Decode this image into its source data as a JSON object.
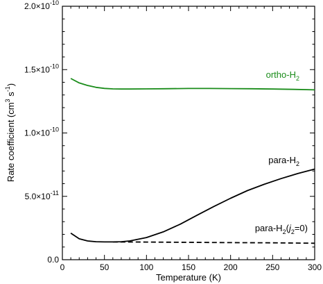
{
  "chart_data": {
    "type": "line",
    "xlabel": "Temperature (K)",
    "ylabel": {
      "base": "Rate coefficient (cm",
      "exp1": "3",
      "mid": " s",
      "exp2": "-1",
      "end": ")"
    },
    "xlim": [
      0,
      300
    ],
    "ylim": [
      0,
      2e-10
    ],
    "x_ticks": [
      {
        "value": 0,
        "label": "0"
      },
      {
        "value": 50,
        "label": "50"
      },
      {
        "value": 100,
        "label": "100"
      },
      {
        "value": 150,
        "label": "150"
      },
      {
        "value": 200,
        "label": "200"
      },
      {
        "value": 250,
        "label": "250"
      },
      {
        "value": 300,
        "label": "300"
      }
    ],
    "y_ticks": [
      {
        "value": 0,
        "mantissa": "0.0",
        "exponent": ""
      },
      {
        "value": 5e-11,
        "mantissa": "5.0×10",
        "exponent": "-11"
      },
      {
        "value": 1e-10,
        "mantissa": "1.0×10",
        "exponent": "-10"
      },
      {
        "value": 1.5e-10,
        "mantissa": "1.5×10",
        "exponent": "-10"
      },
      {
        "value": 2e-10,
        "mantissa": "2.0×10",
        "exponent": "-10"
      }
    ],
    "grid": false,
    "series": [
      {
        "id": "ortho",
        "label_parts": [
          "ortho-H",
          "2",
          "",
          "",
          ""
        ],
        "color": "#1a8c1a",
        "dash": "",
        "x": [
          10,
          20,
          30,
          40,
          50,
          60,
          70,
          80,
          100,
          120,
          150,
          175,
          200,
          225,
          250,
          275,
          300
        ],
        "y": [
          1.43e-10,
          1.395e-10,
          1.375e-10,
          1.36e-10,
          1.352e-10,
          1.348e-10,
          1.347e-10,
          1.347e-10,
          1.348e-10,
          1.349e-10,
          1.351e-10,
          1.351e-10,
          1.35e-10,
          1.349e-10,
          1.347e-10,
          1.344e-10,
          1.34e-10
        ]
      },
      {
        "id": "para",
        "label_parts": [
          "para-H",
          "2",
          "",
          "",
          ""
        ],
        "color": "#000000",
        "dash": "",
        "x": [
          10,
          20,
          30,
          40,
          50,
          60,
          70,
          80,
          100,
          120,
          140,
          160,
          180,
          200,
          220,
          240,
          260,
          280,
          300
        ],
        "y": [
          2.1e-11,
          1.65e-11,
          1.48e-11,
          1.42e-11,
          1.4e-11,
          1.4e-11,
          1.42e-11,
          1.48e-11,
          1.75e-11,
          2.2e-11,
          2.8e-11,
          3.5e-11,
          4.2e-11,
          4.85e-11,
          5.45e-11,
          5.95e-11,
          6.4e-11,
          6.8e-11,
          7.15e-11
        ]
      },
      {
        "id": "para_j0",
        "label_parts": [
          "para-H",
          "2",
          "(",
          "j",
          "2",
          "=0)"
        ],
        "color": "#000000",
        "dash": "7,4",
        "x": [
          60,
          100,
          150,
          200,
          250,
          300
        ],
        "y": [
          1.4e-11,
          1.39e-11,
          1.37e-11,
          1.35e-11,
          1.33e-11,
          1.3e-11
        ]
      }
    ]
  }
}
